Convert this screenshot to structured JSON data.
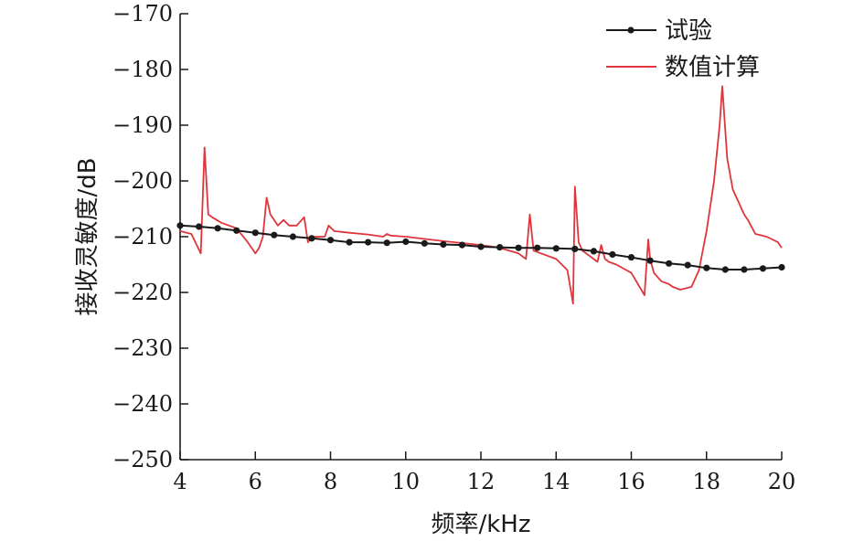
{
  "chart_data": {
    "type": "line",
    "title": "",
    "xlabel": "频率/kHz",
    "ylabel": "接收灵敏度/dB",
    "xlim": [
      4,
      20
    ],
    "ylim": [
      -250,
      -170
    ],
    "x_ticks": [
      4,
      6,
      8,
      10,
      12,
      14,
      16,
      18,
      20
    ],
    "y_ticks": [
      -170,
      -180,
      -190,
      -200,
      -210,
      -220,
      -230,
      -240,
      -250
    ],
    "x_tick_labels": [
      "4",
      "6",
      "8",
      "10",
      "12",
      "14",
      "16",
      "18",
      "20"
    ],
    "y_tick_labels": [
      "−170",
      "−180",
      "−190",
      "−200",
      "−210",
      "−220",
      "−230",
      "−240",
      "−250"
    ],
    "grid": false,
    "legend_position": "top-right",
    "series": [
      {
        "name": "试验",
        "color": "#1a1a1a",
        "marker": "circle",
        "x": [
          4.0,
          4.5,
          5.0,
          5.5,
          6.0,
          6.5,
          7.0,
          7.5,
          8.0,
          8.5,
          9.0,
          9.5,
          10.0,
          10.5,
          11.0,
          11.5,
          12.0,
          12.5,
          13.0,
          13.5,
          14.0,
          14.5,
          15.0,
          15.5,
          16.0,
          16.5,
          17.0,
          17.5,
          18.0,
          18.5,
          19.0,
          19.5,
          20.0
        ],
        "y": [
          -208.0,
          -208.2,
          -208.5,
          -208.9,
          -209.3,
          -209.7,
          -210.0,
          -210.3,
          -210.6,
          -211.0,
          -211.0,
          -211.1,
          -210.9,
          -211.2,
          -211.4,
          -211.5,
          -211.8,
          -211.9,
          -212.0,
          -212.0,
          -212.1,
          -212.2,
          -212.6,
          -213.2,
          -213.7,
          -214.3,
          -214.8,
          -215.1,
          -215.6,
          -215.9,
          -215.9,
          -215.7,
          -215.5
        ]
      },
      {
        "name": "数值计算",
        "color": "#e0353b",
        "marker": "none",
        "x": [
          4.0,
          4.3,
          4.55,
          4.65,
          4.75,
          4.85,
          5.1,
          5.5,
          5.8,
          6.0,
          6.1,
          6.2,
          6.3,
          6.4,
          6.6,
          6.75,
          6.9,
          7.1,
          7.3,
          7.4,
          7.5,
          7.7,
          7.85,
          7.95,
          8.1,
          8.5,
          9.0,
          9.4,
          9.5,
          9.6,
          10.0,
          11.0,
          12.0,
          12.5,
          13.0,
          13.2,
          13.3,
          13.4,
          13.6,
          14.0,
          14.3,
          14.45,
          14.5,
          14.6,
          14.7,
          14.9,
          15.1,
          15.2,
          15.3,
          15.4,
          15.6,
          16.0,
          16.35,
          16.45,
          16.5,
          16.6,
          16.8,
          17.0,
          17.1,
          17.3,
          17.6,
          17.8,
          18.0,
          18.2,
          18.35,
          18.42,
          18.55,
          18.7,
          19.0,
          19.1,
          19.3,
          19.6,
          19.9,
          20.0
        ],
        "y": [
          -209.0,
          -209.5,
          -213.0,
          -194.0,
          -206.0,
          -206.5,
          -207.5,
          -208.5,
          -211.0,
          -213.0,
          -212.0,
          -210.0,
          -203.0,
          -206.0,
          -208.0,
          -207.0,
          -208.0,
          -208.0,
          -206.5,
          -211.0,
          -210.0,
          -210.0,
          -210.0,
          -208.0,
          -209.0,
          -209.3,
          -209.6,
          -210.0,
          -209.5,
          -209.8,
          -210.0,
          -210.8,
          -211.5,
          -212.0,
          -213.0,
          -214.0,
          -206.0,
          -212.5,
          -213.0,
          -214.0,
          -216.0,
          -222.0,
          -201.0,
          -211.0,
          -212.5,
          -213.5,
          -214.5,
          -211.5,
          -214.0,
          -214.5,
          -215.0,
          -216.5,
          -220.5,
          -210.5,
          -214.0,
          -216.5,
          -218.0,
          -218.5,
          -219.0,
          -219.5,
          -219.0,
          -216.0,
          -209.0,
          -200.0,
          -190.0,
          -183.0,
          -196.0,
          -201.5,
          -206.0,
          -207.0,
          -209.5,
          -210.0,
          -211.0,
          -212.0
        ]
      }
    ]
  }
}
